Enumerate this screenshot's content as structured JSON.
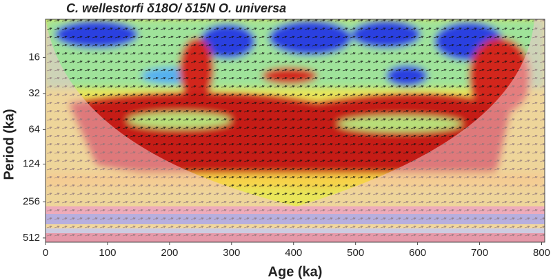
{
  "chart_data": {
    "type": "wavelet",
    "title": "C. wellestorfi δ18O/ δ15N O. universa",
    "x_label": "Age (ka)",
    "y_label": "Period (ka)",
    "xlim": [
      0,
      805
    ],
    "xticks": [
      0,
      100,
      200,
      300,
      400,
      500,
      600,
      700,
      800
    ],
    "ylim": [
      7.7,
      555
    ],
    "yticks": [
      16,
      32,
      64,
      124,
      256,
      512
    ],
    "y_log_base": 2,
    "y_reversed": true
  }
}
